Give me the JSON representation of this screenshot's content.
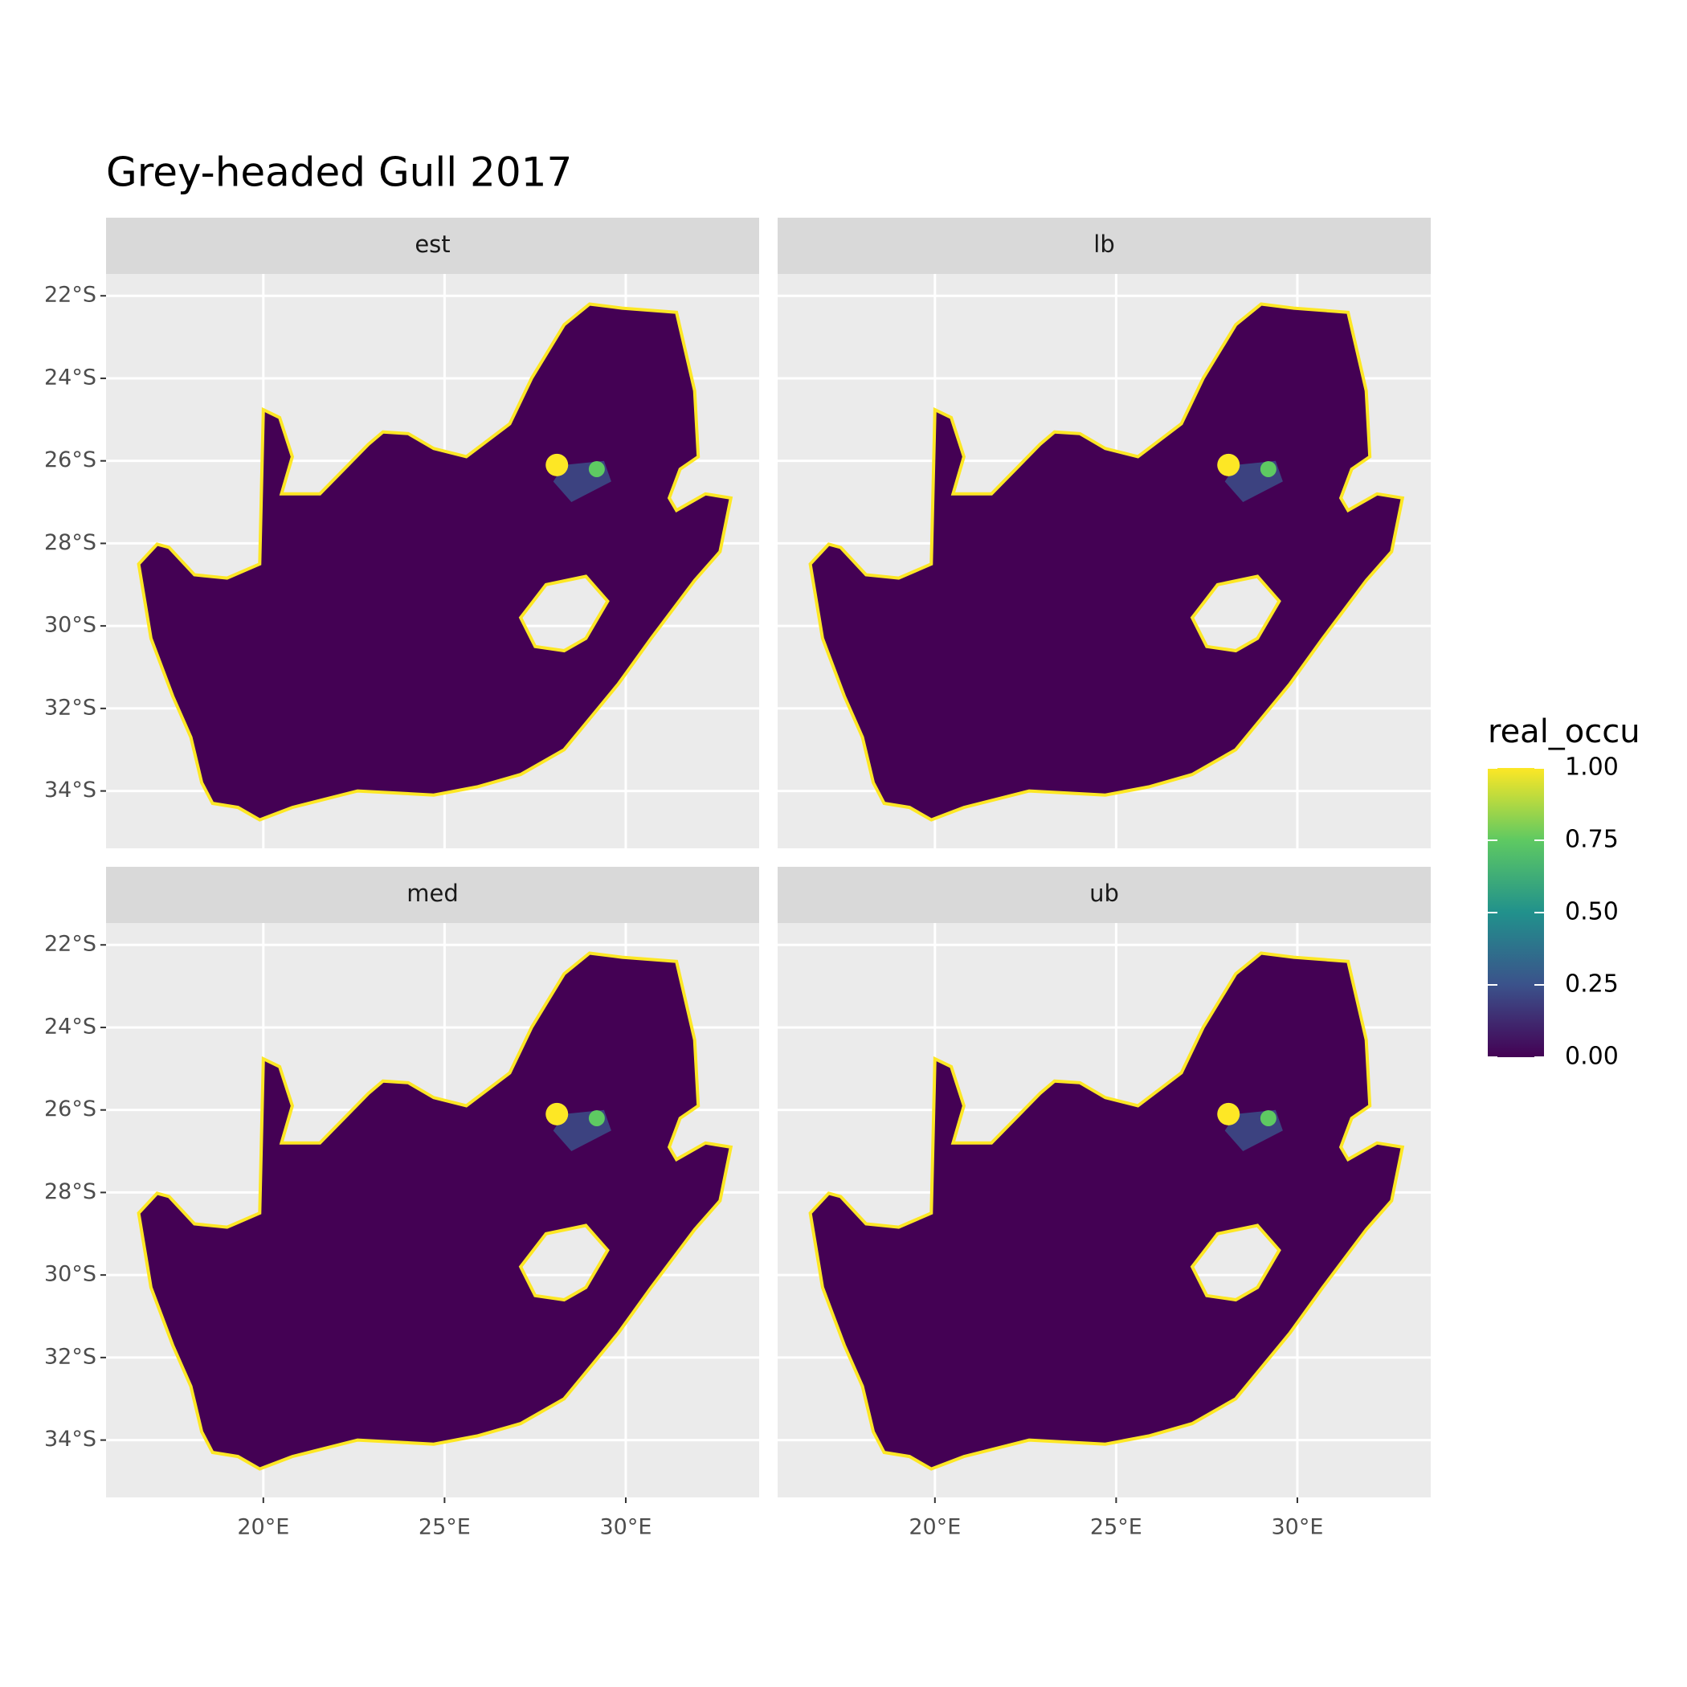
{
  "chart_data": {
    "type": "raster",
    "title": "Grey-headed Gull 2017",
    "facets": [
      "est",
      "lb",
      "med",
      "ub"
    ],
    "xlim": [
      15.66,
      33.68
    ],
    "ylim": [
      -35.39,
      -21.47
    ],
    "xticks": [
      {
        "value": 20,
        "label": "20°E"
      },
      {
        "value": 25,
        "label": "25°E"
      },
      {
        "value": 30,
        "label": "30°E"
      }
    ],
    "yticks": [
      {
        "value": -22,
        "label": "22°S"
      },
      {
        "value": -24,
        "label": "24°S"
      },
      {
        "value": -26,
        "label": "26°S"
      },
      {
        "value": -28,
        "label": "28°S"
      },
      {
        "value": -30,
        "label": "30°S"
      },
      {
        "value": -32,
        "label": "32°S"
      },
      {
        "value": -34,
        "label": "34°S"
      }
    ],
    "grid": true,
    "legend": {
      "title": "real_occu",
      "lim": [
        0,
        1
      ],
      "ticks": [
        {
          "value": 0,
          "label": "0.00"
        },
        {
          "value": 0.25,
          "label": "0.25"
        },
        {
          "value": 0.5,
          "label": "0.50"
        },
        {
          "value": 0.75,
          "label": "0.75"
        },
        {
          "value": 1,
          "label": "1.00"
        }
      ],
      "colors": [
        "#440154",
        "#3b528b",
        "#21918c",
        "#5ec962",
        "#fde725"
      ]
    }
  }
}
